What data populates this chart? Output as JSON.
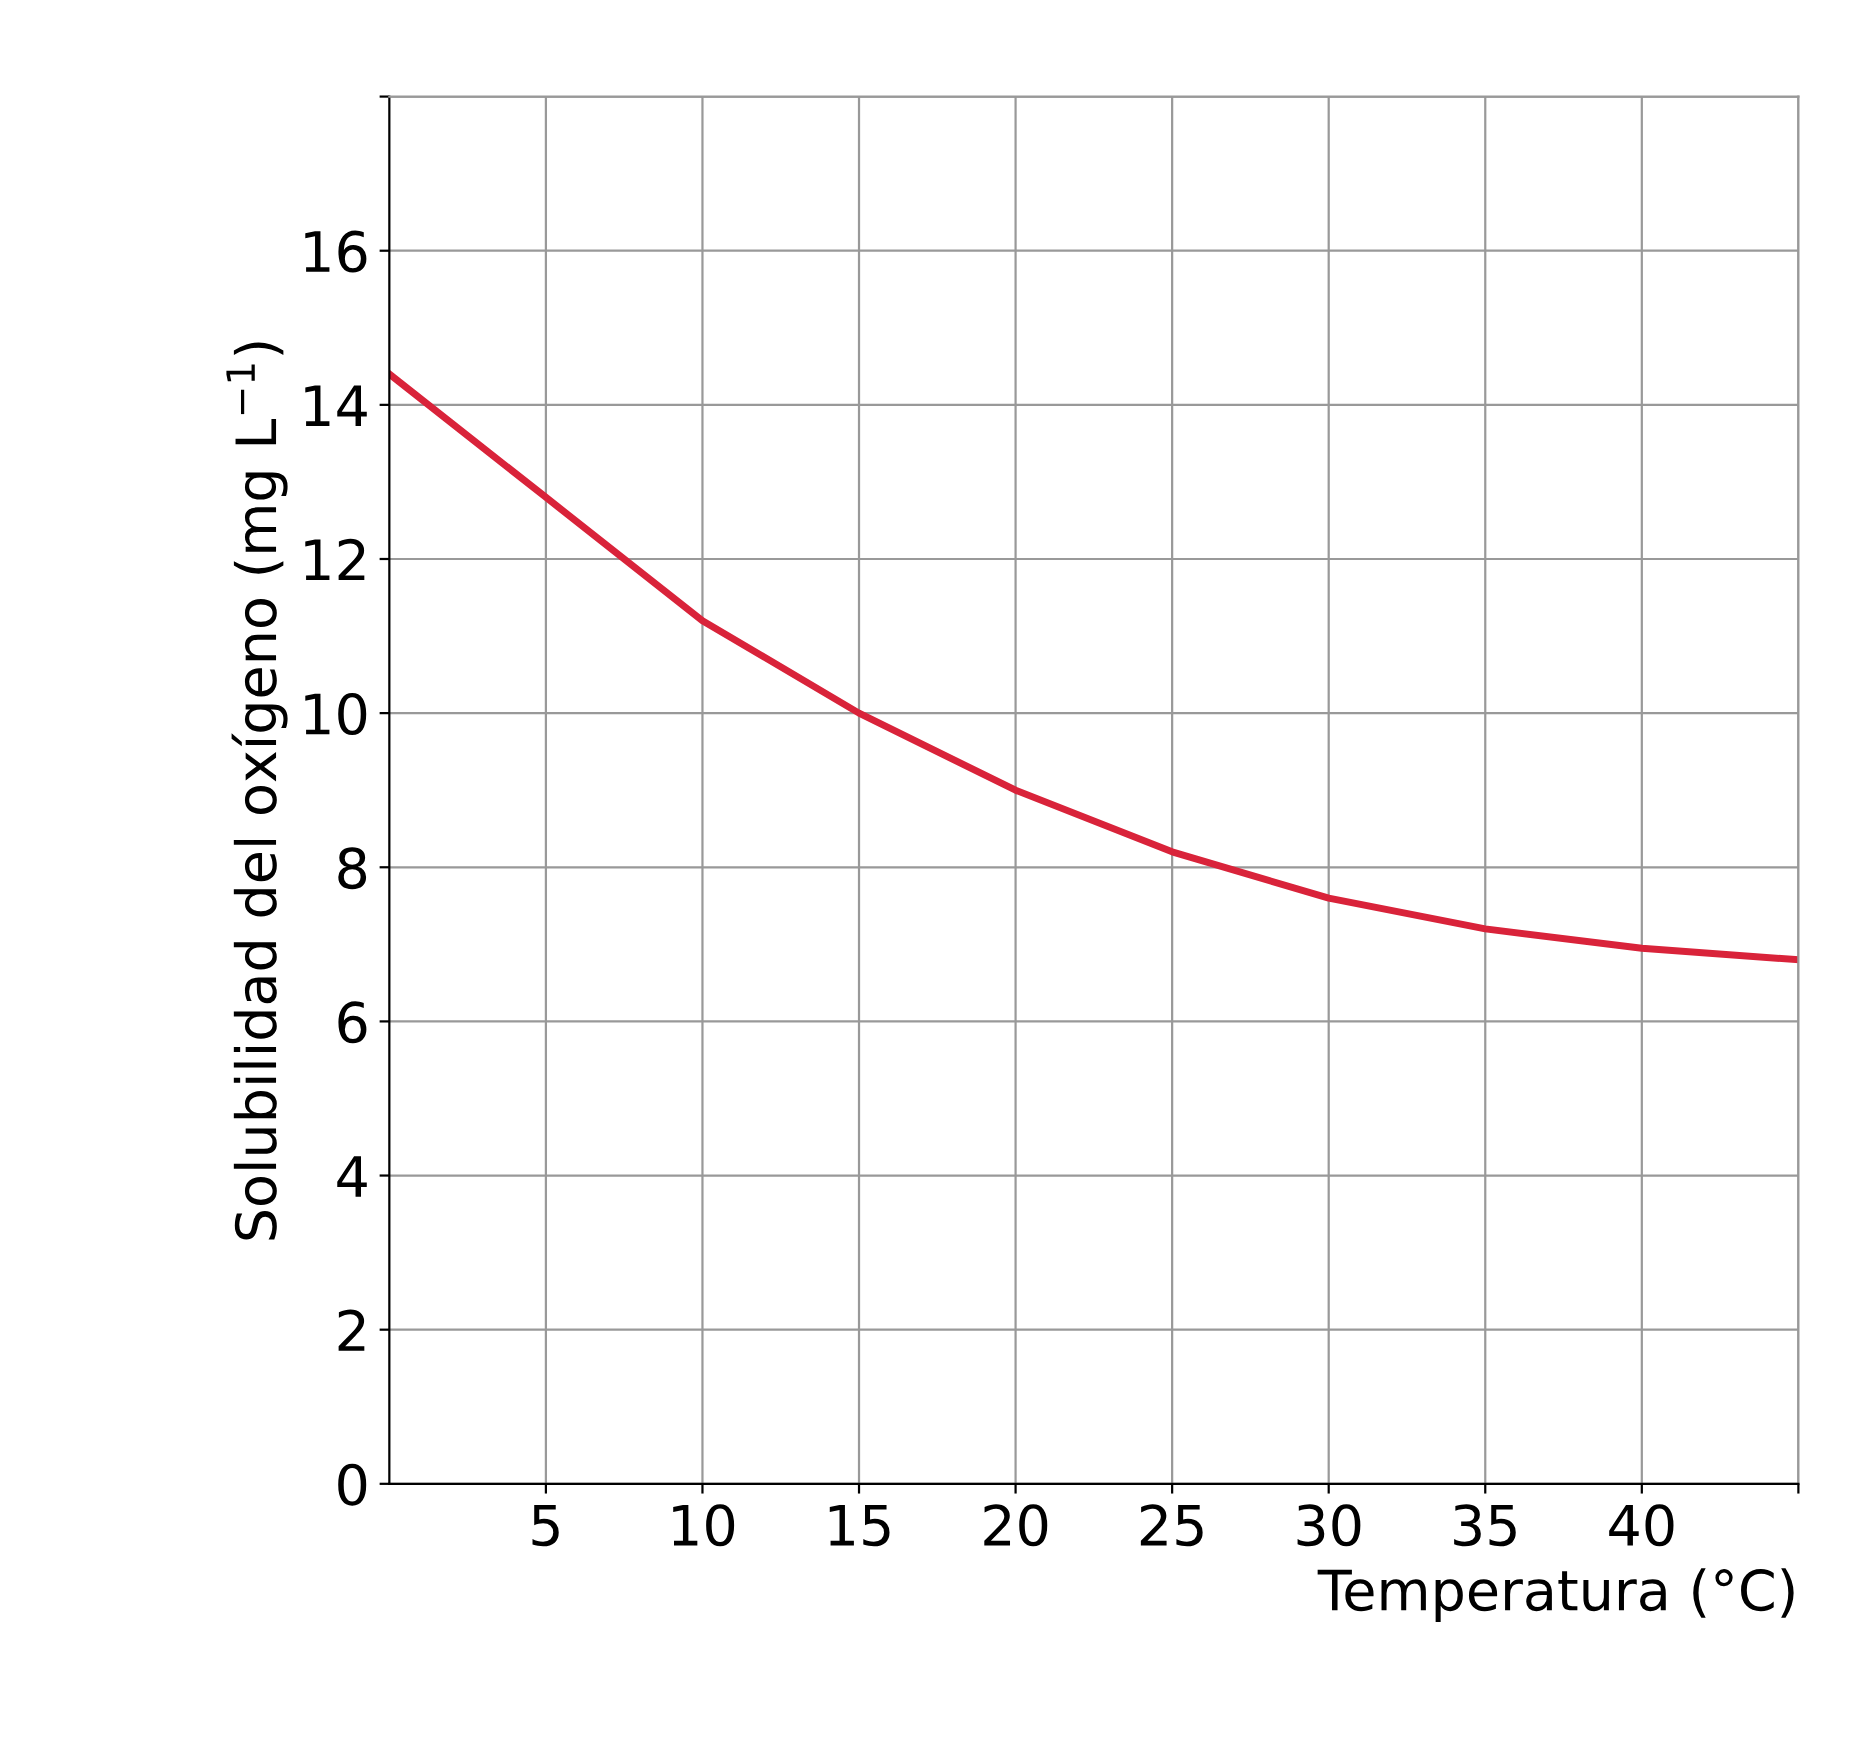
{
  "chart_data": {
    "type": "line",
    "xlabel": "Temperatura (°C)",
    "ylabel": "Solubilidad del oxígeno (mg L$^{−1}$)",
    "x": [
      0,
      5,
      10,
      15,
      20,
      25,
      30,
      35,
      40,
      45
    ],
    "series": [
      {
        "color": "#d9233a",
        "values": [
          14.4,
          12.8,
          11.2,
          10.0,
          9.0,
          8.2,
          7.6,
          7.2,
          6.95,
          6.8
        ]
      }
    ],
    "xlim": [
      0,
      45
    ],
    "ylim": [
      0,
      18
    ],
    "xticks": [
      5,
      10,
      15,
      20,
      25,
      30,
      35,
      40,
      {
        "value": 45,
        "label": null
      }
    ],
    "yticks": [
      0,
      2,
      4,
      6,
      8,
      10,
      12,
      14,
      16,
      {
        "value": 18,
        "label": null
      }
    ],
    "grid": true,
    "marker": "none",
    "line_style": "solid"
  }
}
